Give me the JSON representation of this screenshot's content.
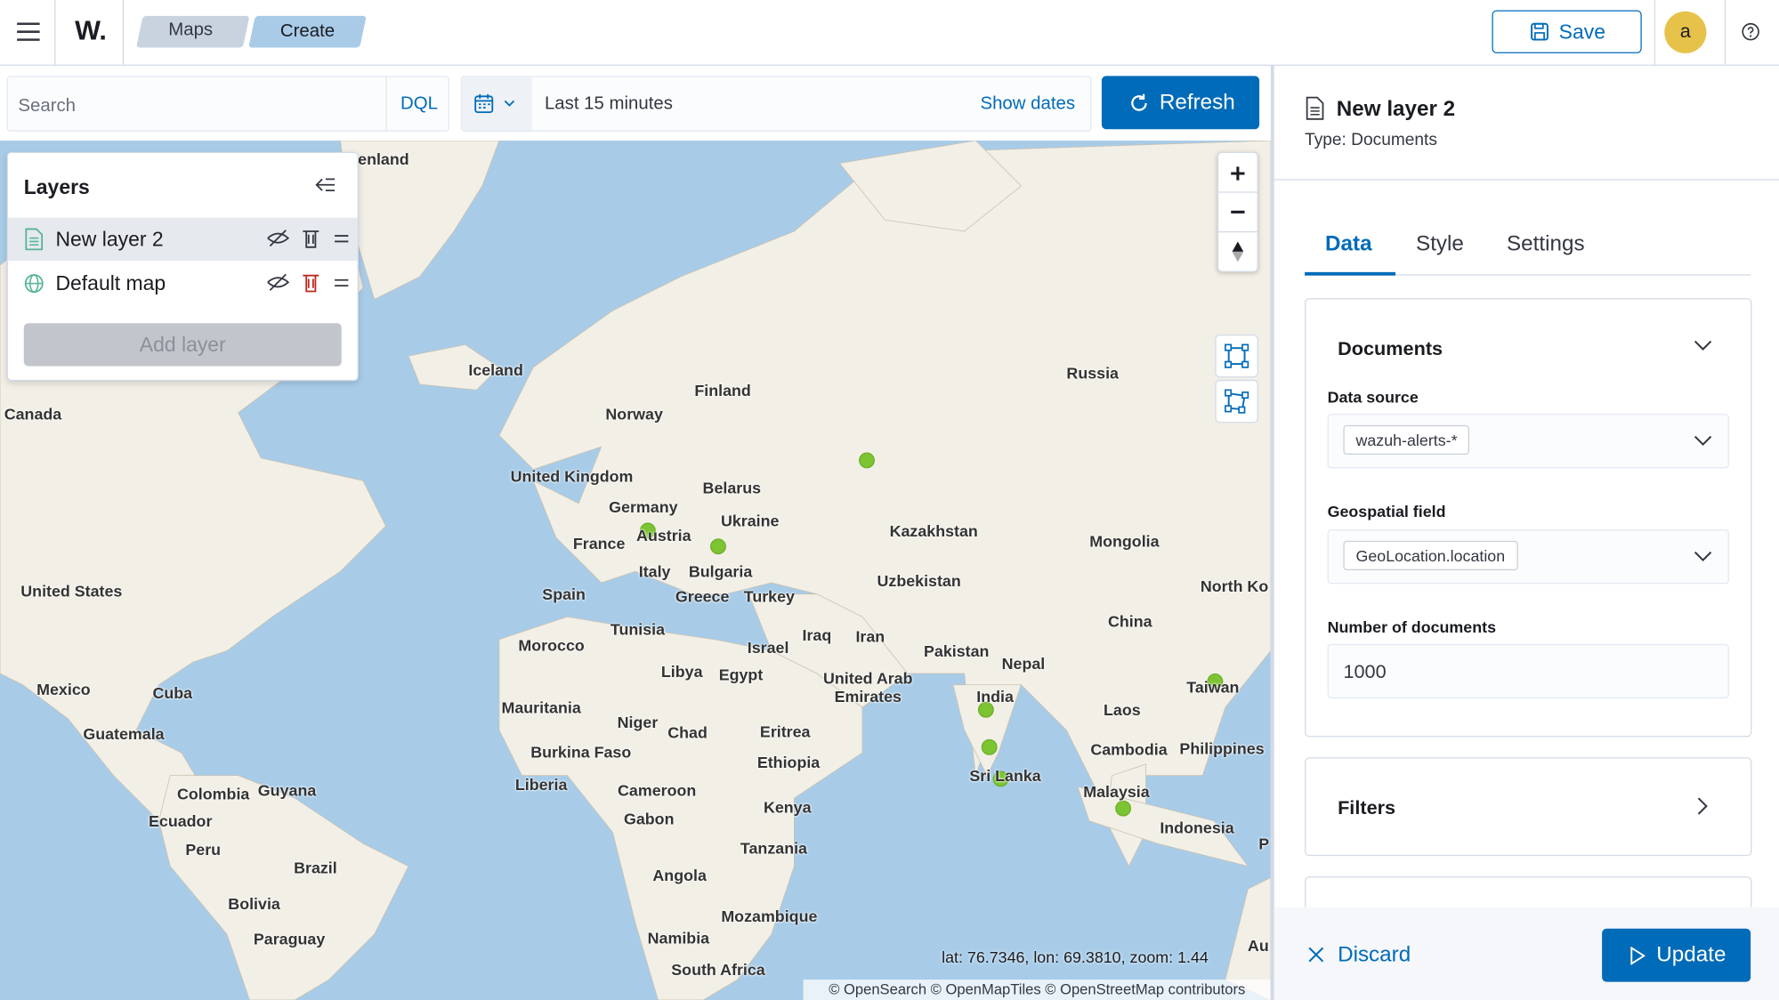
{
  "top_bar": {
    "logo": "W.",
    "breadcrumbs": [
      "Maps",
      "Create"
    ],
    "save": "Save",
    "avatar": "a"
  },
  "query_bar": {
    "search_placeholder": "Search",
    "language": "DQL",
    "time_range": "Last 15 minutes",
    "show_dates": "Show dates",
    "refresh": "Refresh"
  },
  "layers_panel": {
    "title": "Layers",
    "layers": [
      "New layer 2",
      "Default map"
    ],
    "add_layer": "Add layer"
  },
  "map": {
    "labels": [
      "enland",
      "Iceland",
      "Finland",
      "Russia",
      "Norway",
      "Canada",
      "United Kingdom",
      "Belarus",
      "Germany",
      "Ukraine",
      "Kazakhstan",
      "Mongolia",
      "France",
      "Austria",
      "Bulgaria",
      "Italy",
      "Uzbekistan",
      "United States",
      "Spain",
      "Greece",
      "Turkey",
      "North Ko",
      "China",
      "Tunisia",
      "Iraq",
      "Iran",
      "Morocco",
      "Israel",
      "Pakistan",
      "Nepal",
      "Libya",
      "Egypt",
      "United Arab Emirates",
      "Mexico",
      "Cuba",
      "Taiwan",
      "India",
      "Mauritania",
      "Laos",
      "Niger",
      "Chad",
      "Eritrea",
      "Guatemala",
      "Burkina Faso",
      "Cambodia",
      "Philippines",
      "Ethiopia",
      "Sri Lanka",
      "Liberia",
      "Colombia",
      "Guyana",
      "Cameroon",
      "Malaysia",
      "Kenya",
      "Ecuador",
      "Gabon",
      "Indonesia",
      "P",
      "Peru",
      "Tanzania",
      "Brazil",
      "Angola",
      "Bolivia",
      "Mozambique",
      "Paraguay",
      "Namibia",
      "South Africa",
      "Au"
    ],
    "coordinates": "lat: 76.7346, lon: 69.3810, zoom: 1.44",
    "attribution": "© OpenSearch © OpenMapTiles © OpenStreetMap contributors"
  },
  "layer_config": {
    "title": "New layer 2",
    "type": "Type: Documents",
    "tabs": [
      "Data",
      "Style",
      "Settings"
    ],
    "documents": {
      "title": "Documents",
      "data_source_label": "Data source",
      "data_source": "wazuh-alerts-*",
      "geospatial_field_label": "Geospatial field",
      "geospatial_field": "GeoLocation.location",
      "number_of_documents_label": "Number of documents",
      "number_of_documents": 1000
    },
    "filters": "Filters",
    "discard": "Discard",
    "update": "Update"
  }
}
